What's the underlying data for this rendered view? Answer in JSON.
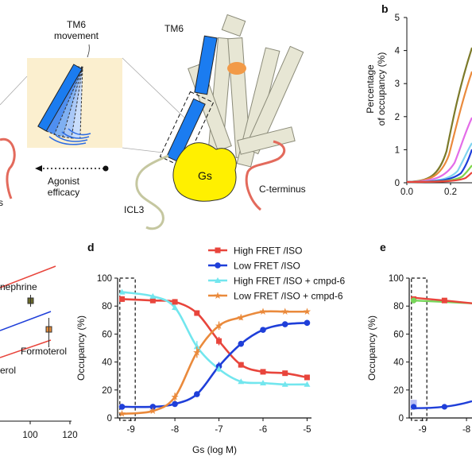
{
  "panels": {
    "b": "b",
    "d": "d",
    "e": "e"
  },
  "top_left": {
    "tm6_movement": [
      "TM6",
      "movement"
    ],
    "agonist_efficacy": [
      "Agonist",
      "efficacy"
    ],
    "fragment_s": "s"
  },
  "structure": {
    "tm6": "TM6",
    "gs": "Gs",
    "icl3": "ICL3",
    "c_terminus": "C-terminus"
  },
  "panel_b": {
    "ylabel": [
      "Percentage",
      "of occupancy (%)"
    ],
    "yticks": [
      "0",
      "1",
      "2",
      "3",
      "4",
      "5"
    ],
    "xticks": [
      "0.0",
      "0.2"
    ]
  },
  "panel_c_fragment": {
    "labels": {
      "nephrine": "nephrine",
      "formoterol": "Formoterol",
      "erol": "erol"
    },
    "xticks": [
      "100",
      "120"
    ],
    "colors": {
      "red": "#e8453c",
      "blue": "#1f3fd9",
      "olive": "#6b6a2a",
      "orange": "#e08a3a"
    }
  },
  "chart_data": [
    {
      "panel": "d",
      "type": "scatter",
      "xlabel": "Gs (log M)",
      "ylabel": "Occupancy (%)",
      "xlim": [
        -9.3,
        -4.9
      ],
      "ylim": [
        0,
        100
      ],
      "xticks": [
        "-9",
        "-8",
        "-7",
        "-6",
        "-5"
      ],
      "yticks": [
        "0",
        "20",
        "40",
        "60",
        "80",
        "100"
      ],
      "legend_position": "top-right",
      "series": [
        {
          "name": "High FRET /ISO",
          "color": "#e8453c",
          "marker": "square",
          "x": [
            -9.2,
            -8.5,
            -8.0,
            -7.5,
            -7.0,
            -6.5,
            -6.0,
            -5.5,
            -5.0
          ],
          "y": [
            85,
            84,
            83,
            75,
            55,
            38,
            33,
            32,
            29
          ],
          "err": [
            2,
            1,
            2,
            2,
            3,
            2,
            1,
            1,
            1
          ]
        },
        {
          "name": "Low FRET /ISO",
          "color": "#1f3fd9",
          "marker": "circle",
          "x": [
            -9.2,
            -8.5,
            -8.0,
            -7.5,
            -7.0,
            -6.5,
            -6.0,
            -5.5,
            -5.0
          ],
          "y": [
            8,
            8,
            10,
            17,
            37,
            53,
            63,
            67,
            68
          ],
          "err": [
            1,
            1,
            1,
            1,
            3,
            2,
            2,
            1,
            2
          ]
        },
        {
          "name": "High FRET /ISO + cmpd-6",
          "color": "#72e6ee",
          "marker": "triangle",
          "x": [
            -9.2,
            -8.5,
            -8.0,
            -7.5,
            -7.0,
            -6.5,
            -6.0,
            -5.5,
            -5.0
          ],
          "y": [
            90,
            87,
            79,
            51,
            35,
            26,
            25,
            24,
            24
          ],
          "err": [
            1,
            1,
            2,
            4,
            2,
            1,
            1,
            1,
            1
          ]
        },
        {
          "name": "Low FRET /ISO + cmpd-6",
          "color": "#ea8a3c",
          "marker": "star",
          "x": [
            -9.2,
            -8.5,
            -8.0,
            -7.5,
            -7.0,
            -6.5,
            -6.0,
            -5.5,
            -5.0
          ],
          "y": [
            3,
            5,
            15,
            47,
            66,
            72,
            76,
            76,
            76
          ],
          "err": [
            1,
            1,
            3,
            4,
            3,
            2,
            1,
            1,
            1
          ]
        }
      ],
      "highlight_box_x": [
        -9.25,
        -8.9
      ]
    }
  ],
  "panel_e": {
    "ylabel": "Occupancy (%)",
    "yticks": [
      "0",
      "20",
      "40",
      "60",
      "80",
      "100"
    ],
    "xticks": [
      "-9",
      "-8"
    ],
    "series_colors": [
      "#e8453c",
      "#76d65a",
      "#1f3fd9",
      "#b9bff5"
    ]
  }
}
